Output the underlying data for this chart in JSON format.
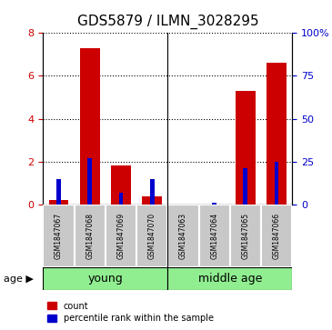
{
  "title": "GDS5879 / ILMN_3028295",
  "samples": [
    "GSM1847067",
    "GSM1847068",
    "GSM1847069",
    "GSM1847070",
    "GSM1847063",
    "GSM1847064",
    "GSM1847065",
    "GSM1847066"
  ],
  "count_values": [
    0.22,
    7.3,
    1.82,
    0.38,
    0.0,
    0.02,
    5.3,
    6.6
  ],
  "percentile_values": [
    15,
    27,
    7,
    15,
    0,
    1,
    21,
    25
  ],
  "groups": [
    {
      "label": "young",
      "start": 0,
      "end": 4,
      "color": "#90EE90"
    },
    {
      "label": "middle age",
      "start": 4,
      "end": 8,
      "color": "#90EE90"
    }
  ],
  "ylim_left": [
    0,
    8
  ],
  "ylim_right": [
    0,
    100
  ],
  "yticks_left": [
    0,
    2,
    4,
    6,
    8
  ],
  "yticks_right": [
    0,
    25,
    50,
    75,
    100
  ],
  "ytick_labels_right": [
    "0",
    "25",
    "50",
    "75",
    "100%"
  ],
  "bar_width": 0.35,
  "count_color": "#CC0000",
  "percentile_color": "#0000CC",
  "background_color": "#ffffff",
  "plot_bg_color": "#ffffff",
  "grid_color": "#000000",
  "age_label": "age",
  "legend_count": "count",
  "legend_percentile": "percentile rank within the sample"
}
